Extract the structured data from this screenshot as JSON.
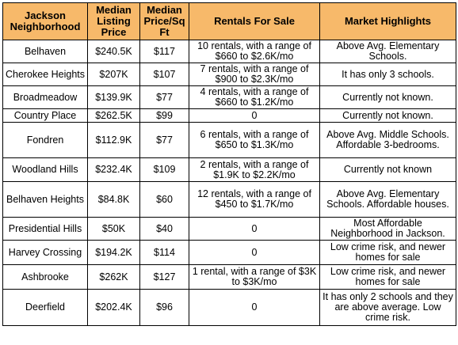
{
  "colors": {
    "header_background": "#f7b96a",
    "border": "#000000",
    "row_background": "#ffffff"
  },
  "table": {
    "headers": [
      "Jackson Neighborhood",
      "Median Listing Price",
      "Median Price/Sq Ft",
      "Rentals For Sale",
      "Market Highlights"
    ],
    "rows": [
      [
        "Belhaven",
        "$240.5K",
        "$117",
        "10 rentals, with a range of $660 to $2.6K/mo",
        "Above Avg. Elementary Schools."
      ],
      [
        "Cherokee Heights",
        "$207K",
        "$107",
        "7 rentals, with a range of $900 to $2.3K/mo",
        "It has only 3 schools."
      ],
      [
        "Broadmeadow",
        "$139.9K",
        "$77",
        "4 rentals, with a range of $660 to $1.2K/mo",
        "Currently not known."
      ],
      [
        "Country Place",
        "$262.5K",
        "$99",
        "0",
        "Currently not known."
      ],
      [
        "Fondren",
        "$112.9K",
        "$77",
        "6 rentals, with a range of $650 to $1.3K/mo",
        "Above Avg. Middle Schools. Affordable 3-bedrooms."
      ],
      [
        "Woodland Hills",
        "$232.4K",
        "$109",
        "2 rentals, with a range of $1.9K to $2.2K/mo",
        "Currently not known"
      ],
      [
        "Belhaven Heights",
        "$84.8K",
        "$60",
        "12 rentals, with a range of $450 to $1.7K/mo",
        "Above Avg. Elementary Schools. Affordable houses."
      ],
      [
        "Presidential Hills",
        "$50K",
        "$40",
        "0",
        "Most Affordable Neighborhood in Jackson."
      ],
      [
        "Harvey Crossing",
        "$194.2K",
        "$114",
        "0",
        "Low crime risk, and newer homes for sale"
      ],
      [
        "Ashbrooke",
        "$262K",
        "$127",
        "1 rental, with a range of $3K to $3K/mo",
        "Low crime risk, and newer homes for sale"
      ],
      [
        "Deerfield",
        "$202.4K",
        "$96",
        "0",
        "It has only 2 schools and they are above average. Low crime risk."
      ]
    ]
  }
}
